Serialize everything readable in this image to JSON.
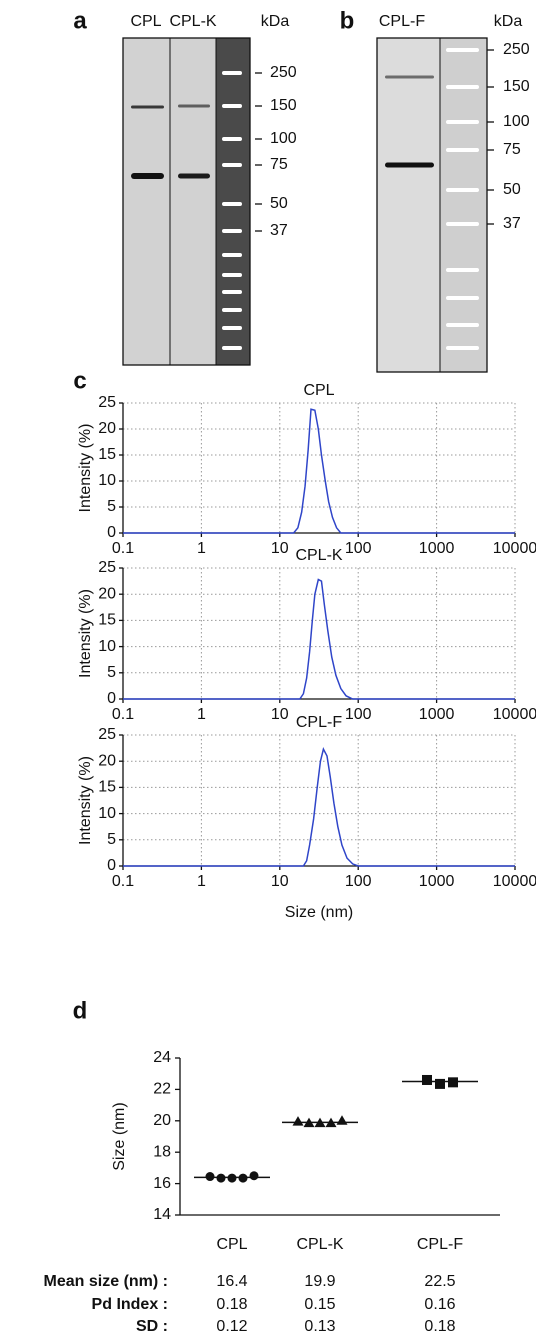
{
  "gels": [
    {
      "panel": "a",
      "lanes": [
        "CPL",
        "CPL-K"
      ],
      "unit": "kDa",
      "markers": [
        250,
        150,
        100,
        75,
        50,
        37
      ]
    },
    {
      "panel": "b",
      "lanes": [
        "CPL-F"
      ],
      "unit": "kDa",
      "markers": [
        250,
        150,
        100,
        75,
        50,
        37
      ]
    }
  ],
  "panel_c": "c",
  "panel_d": "d",
  "chart_data": [
    {
      "type": "line",
      "title": "CPL",
      "ylabel": "Intensity (%)",
      "xscale": "log",
      "grid": true,
      "x": [
        0.1,
        15,
        17,
        19,
        21,
        23,
        25,
        28,
        31,
        34,
        38,
        42,
        47,
        53,
        60,
        10000
      ],
      "series": [
        {
          "color": "#2f45c9",
          "values": [
            0,
            0,
            1,
            4,
            9,
            16,
            23.8,
            23.6,
            20,
            15,
            10,
            6,
            3,
            1,
            0,
            0
          ]
        }
      ],
      "xlim": [
        0.1,
        10000
      ],
      "xticks": [
        0.1,
        1,
        10,
        100,
        1000,
        10000
      ],
      "ylim": [
        0,
        25
      ],
      "yticks": [
        0,
        5,
        10,
        15,
        20,
        25
      ]
    },
    {
      "type": "line",
      "title": "CPL-K",
      "ylabel": "Intensity (%)",
      "xscale": "log",
      "grid": true,
      "x": [
        0.1,
        18,
        20,
        22,
        24,
        26,
        28,
        31,
        34,
        37,
        41,
        46,
        52,
        60,
        70,
        85,
        10000
      ],
      "series": [
        {
          "color": "#2f45c9",
          "values": [
            0,
            0,
            1,
            4,
            9,
            15,
            20,
            22.8,
            22.5,
            18,
            13,
            8,
            4.5,
            2,
            0.6,
            0,
            0
          ]
        }
      ],
      "xlim": [
        0.1,
        10000
      ],
      "xticks": [
        0.1,
        1,
        10,
        100,
        1000,
        10000
      ],
      "ylim": [
        0,
        25
      ],
      "yticks": [
        0,
        5,
        10,
        15,
        20,
        25
      ]
    },
    {
      "type": "line",
      "title": "CPL-F",
      "ylabel": "Intensity (%)",
      "xlabel": "Size (nm)",
      "xscale": "log",
      "grid": true,
      "x": [
        0.1,
        20,
        22,
        24,
        27,
        30,
        33,
        36,
        40,
        44,
        49,
        55,
        62,
        72,
        85,
        100,
        10000
      ],
      "series": [
        {
          "color": "#2f45c9",
          "values": [
            0,
            0,
            1,
            4,
            9,
            15,
            20,
            22.3,
            21,
            17,
            12,
            7.5,
            4,
            1.5,
            0.4,
            0,
            0
          ]
        }
      ],
      "xlim": [
        0.1,
        10000
      ],
      "xticks": [
        0.1,
        1,
        10,
        100,
        1000,
        10000
      ],
      "ylim": [
        0,
        25
      ],
      "yticks": [
        0,
        5,
        10,
        15,
        20,
        25
      ]
    },
    {
      "type": "scatter",
      "ylabel": "Size (nm)",
      "color": "#111111",
      "categories": [
        "CPL",
        "CPL-K",
        "CPL-F"
      ],
      "markers": [
        "circle",
        "triangle",
        "square"
      ],
      "points": [
        [
          16.45,
          16.35,
          16.35,
          16.35,
          16.5
        ],
        [
          19.95,
          19.85,
          19.85,
          19.85,
          20.0
        ],
        [
          22.6,
          22.35,
          22.45
        ]
      ],
      "ylim": [
        14,
        24
      ],
      "yticks": [
        14,
        16,
        18,
        20,
        22,
        24
      ],
      "summary": [
        {
          "label": "Mean size (nm) :",
          "values": [
            16.4,
            19.9,
            22.5
          ]
        },
        {
          "label": "Pd Index :",
          "values": [
            0.18,
            0.15,
            0.16
          ]
        },
        {
          "label": "SD :",
          "values": [
            0.12,
            0.13,
            0.18
          ]
        }
      ]
    }
  ]
}
